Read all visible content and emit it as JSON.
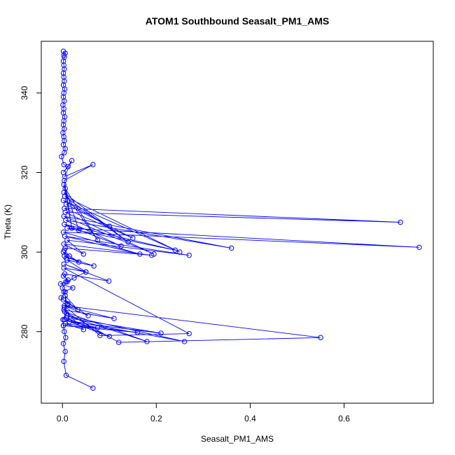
{
  "chart_data": {
    "type": "line",
    "title": "ATOM1 Southbound Seasalt_PM1_AMS",
    "xlabel": "Seasalt_PM1_AMS",
    "ylabel": "Theta (K)",
    "xlim": [
      -0.045,
      0.79
    ],
    "ylim": [
      262,
      353
    ],
    "xticks": [
      0.0,
      0.2,
      0.4,
      0.6
    ],
    "xtick_labels": [
      "0.0",
      "0.2",
      "0.4",
      "0.6"
    ],
    "yticks": [
      280,
      300,
      320,
      340
    ],
    "ytick_labels": [
      "280",
      "300",
      "320",
      "340"
    ],
    "grid": false,
    "legend": "none",
    "colors": {
      "series": "#0000ff",
      "axes": "#000000",
      "background": "#ffffff"
    },
    "marker": "open-circle",
    "series": [
      {
        "x": [
          0.065,
          0.008,
          0.003,
          0.006,
          0.002,
          0.007,
          0.004,
          0.002,
          0.001,
          0.009,
          0.004,
          0.012,
          -0.003,
          0.006,
          0.0,
          0.01,
          0.025,
          0.05,
          0.003,
          0.27,
          0.08,
          0.004,
          0.55,
          0.12,
          0.005,
          0.18,
          0.01,
          0.26,
          0.004,
          0.1,
          0.008,
          0.21,
          0.015,
          0.075,
          0.002,
          0.16,
          0.006,
          0.045,
          0.003,
          0.11,
          0.004,
          0.055,
          0.002,
          0.033,
          0.006,
          0.01,
          0.003,
          0.022,
          -0.004,
          0.007,
          0.012,
          0.002,
          0.005,
          0.099,
          0.003,
          0.05,
          0.01,
          0.067,
          0.004,
          0.035,
          0.002,
          0.008,
          0.015,
          0.004,
          0.006,
          0.19,
          0.003,
          0.045,
          0.01,
          0.27,
          0.005,
          0.165,
          0.002,
          0.76,
          0.01,
          0.24,
          0.004,
          0.125,
          0.007,
          0.36,
          0.003,
          0.195,
          0.006,
          0.72,
          0.004,
          0.15,
          0.008,
          0.1,
          0.002,
          0.25,
          0.005,
          0.14,
          0.003,
          0.075,
          0.006,
          0.035,
          0.003,
          0.02,
          0.004,
          0.065,
          0.005,
          0.02,
          0.002,
          0.012,
          0.003,
          -0.002,
          0.004,
          0.006,
          0.002,
          0.004,
          0.003,
          0.001,
          0.004,
          0.002,
          0.003,
          0.005,
          0.002,
          0.003,
          0.001,
          0.004,
          0.002,
          0.003,
          0.005,
          0.002,
          0.004,
          0.003,
          0.002,
          0.004,
          0.003,
          0.002,
          0.004,
          0.003,
          0.006,
          0.002
        ],
        "y": [
          265.8,
          269.0,
          272.5,
          275.0,
          277.0,
          278.5,
          280.0,
          281.5,
          283.0,
          284.5,
          286.0,
          287.0,
          288.5,
          290.0,
          291.0,
          292.5,
          293.5,
          295.0,
          296.0,
          279.5,
          279.0,
          286.5,
          278.5,
          277.3,
          285.0,
          277.5,
          284.0,
          277.5,
          283.0,
          278.8,
          283.5,
          279.6,
          282.5,
          281.0,
          281.5,
          279.8,
          282.0,
          280.5,
          285.5,
          283.3,
          286.5,
          284.0,
          288.0,
          285.5,
          289.0,
          287.0,
          290.0,
          291.0,
          292.0,
          292.5,
          293.0,
          294.0,
          294.5,
          292.7,
          297.0,
          295.0,
          298.0,
          296.5,
          299.0,
          297.5,
          300.0,
          298.5,
          299.0,
          300.5,
          301.0,
          299.2,
          302.0,
          299.5,
          303.0,
          299.2,
          304.0,
          299.5,
          305.0,
          301.2,
          306.0,
          300.5,
          307.0,
          301.5,
          308.0,
          301.0,
          309.0,
          299.5,
          310.0,
          307.5,
          311.0,
          303.5,
          312.0,
          306.5,
          313.0,
          300.0,
          314.0,
          302.5,
          315.0,
          303.0,
          316.0,
          305.5,
          317.0,
          306.0,
          318.0,
          322.0,
          319.0,
          323.0,
          320.0,
          321.5,
          322.0,
          324.0,
          325.0,
          326.0,
          327.0,
          328.0,
          329.0,
          330.0,
          331.0,
          332.0,
          333.0,
          334.0,
          335.0,
          336.0,
          337.0,
          338.0,
          339.0,
          340.0,
          341.0,
          342.0,
          343.0,
          344.0,
          345.0,
          346.0,
          347.0,
          348.0,
          349.0,
          349.5,
          350.0,
          350.5
        ]
      }
    ]
  }
}
